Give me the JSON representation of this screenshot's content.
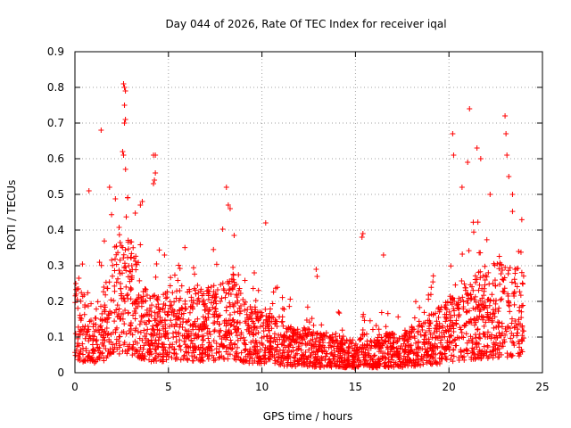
{
  "chart_data": {
    "type": "scatter",
    "title": "Day 044 of 2026, Rate Of TEC Index for receiver iqal",
    "xlabel": "GPS time / hours",
    "ylabel": "ROTI / TECUs",
    "xlim": [
      0,
      25
    ],
    "ylim": [
      0,
      0.9
    ],
    "xticks": [
      0,
      5,
      10,
      15,
      20,
      25
    ],
    "yticks": [
      0,
      0.1,
      0.2,
      0.3,
      0.4,
      0.5,
      0.6,
      0.7,
      0.8,
      0.9
    ],
    "xtick_labels": [
      "0",
      "5",
      "10",
      "15",
      "20",
      "25"
    ],
    "ytick_labels": [
      "0",
      "0.1",
      "0.2",
      "0.3",
      "0.4",
      "0.5",
      "0.6",
      "0.7",
      "0.8",
      "0.9"
    ],
    "grid": true,
    "marker": "+",
    "marker_color": "#ff0000",
    "data_range_x": [
      0,
      24
    ],
    "envelope_hours": [
      0,
      0.5,
      1,
      1.5,
      2,
      2.5,
      3,
      3.5,
      4,
      4.5,
      5,
      5.5,
      6,
      6.5,
      7,
      7.5,
      8,
      8.5,
      9,
      9.5,
      10,
      10.5,
      11,
      11.5,
      12,
      12.5,
      13,
      13.5,
      14,
      14.5,
      15,
      15.5,
      16,
      16.5,
      17,
      17.5,
      18,
      18.5,
      19,
      19.5,
      20,
      20.5,
      21,
      21.5,
      22,
      22.5,
      23,
      23.5,
      24
    ],
    "envelope_typical_roti": [
      0.14,
      0.12,
      0.1,
      0.13,
      0.18,
      0.22,
      0.2,
      0.16,
      0.12,
      0.12,
      0.13,
      0.14,
      0.13,
      0.13,
      0.13,
      0.13,
      0.14,
      0.15,
      0.12,
      0.1,
      0.1,
      0.09,
      0.08,
      0.07,
      0.07,
      0.07,
      0.06,
      0.06,
      0.06,
      0.05,
      0.05,
      0.06,
      0.05,
      0.06,
      0.06,
      0.06,
      0.07,
      0.08,
      0.09,
      0.1,
      0.12,
      0.14,
      0.14,
      0.15,
      0.16,
      0.17,
      0.17,
      0.16,
      0.16
    ],
    "points_outliers": [
      {
        "x": 2.6,
        "y": 0.81
      },
      {
        "x": 2.65,
        "y": 0.8
      },
      {
        "x": 2.7,
        "y": 0.79
      },
      {
        "x": 2.65,
        "y": 0.75
      },
      {
        "x": 2.7,
        "y": 0.71
      },
      {
        "x": 2.65,
        "y": 0.7
      },
      {
        "x": 1.4,
        "y": 0.68
      },
      {
        "x": 2.55,
        "y": 0.62
      },
      {
        "x": 2.6,
        "y": 0.61
      },
      {
        "x": 4.2,
        "y": 0.61
      },
      {
        "x": 4.3,
        "y": 0.61
      },
      {
        "x": 4.3,
        "y": 0.56
      },
      {
        "x": 4.25,
        "y": 0.54
      },
      {
        "x": 4.2,
        "y": 0.53
      },
      {
        "x": 0.75,
        "y": 0.51
      },
      {
        "x": 1.85,
        "y": 0.52
      },
      {
        "x": 3.6,
        "y": 0.48
      },
      {
        "x": 3.5,
        "y": 0.47
      },
      {
        "x": 8.1,
        "y": 0.52
      },
      {
        "x": 8.2,
        "y": 0.47
      },
      {
        "x": 8.3,
        "y": 0.46
      },
      {
        "x": 10.2,
        "y": 0.42
      },
      {
        "x": 15.4,
        "y": 0.39
      },
      {
        "x": 15.35,
        "y": 0.38
      },
      {
        "x": 16.5,
        "y": 0.33
      },
      {
        "x": 12.9,
        "y": 0.29
      },
      {
        "x": 12.95,
        "y": 0.27
      },
      {
        "x": 20.2,
        "y": 0.67
      },
      {
        "x": 20.25,
        "y": 0.61
      },
      {
        "x": 21.1,
        "y": 0.74
      },
      {
        "x": 21.0,
        "y": 0.59
      },
      {
        "x": 21.5,
        "y": 0.63
      },
      {
        "x": 21.7,
        "y": 0.6
      },
      {
        "x": 23.0,
        "y": 0.72
      },
      {
        "x": 23.05,
        "y": 0.67
      },
      {
        "x": 23.1,
        "y": 0.61
      },
      {
        "x": 23.2,
        "y": 0.55
      },
      {
        "x": 20.7,
        "y": 0.52
      },
      {
        "x": 22.2,
        "y": 0.5
      },
      {
        "x": 23.4,
        "y": 0.5
      }
    ]
  }
}
